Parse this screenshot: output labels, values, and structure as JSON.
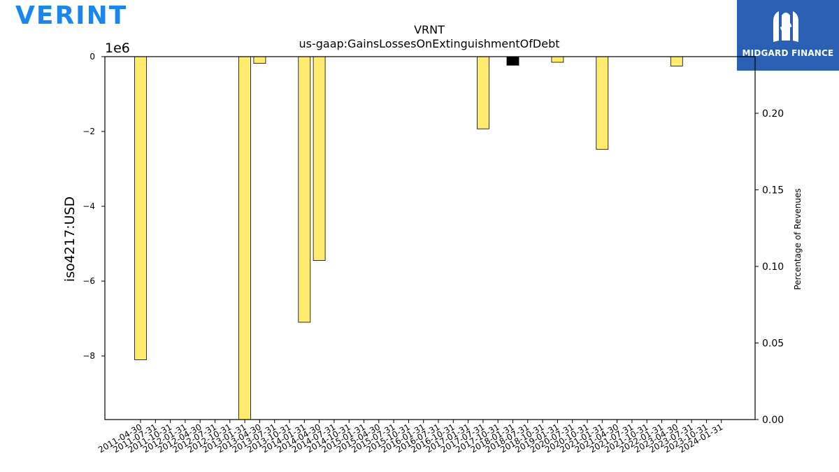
{
  "header": {
    "brand_logo": "VERINT",
    "badge_text": "MIDGARD FINANCE",
    "badge_color": "#2b5fb3",
    "brand_color": "#1a86f0"
  },
  "chart_data": {
    "type": "bar",
    "title": "VRNT",
    "subtitle": "us-gaap:GainsLossesOnExtinguishmentOfDebt",
    "ylabel": "iso4217:USD",
    "y2label": "Percentage of Revenues",
    "offset_label": "1e6",
    "ylim": [
      -9700000,
      0
    ],
    "y2lim": [
      0,
      0.237
    ],
    "yticks": [
      0,
      -2000000,
      -4000000,
      -6000000,
      -8000000
    ],
    "ytick_labels": [
      "0",
      "−2",
      "−4",
      "−6",
      "−8"
    ],
    "y2ticks": [
      0.0,
      0.05,
      0.1,
      0.15,
      0.2
    ],
    "y2tick_labels": [
      "0.00",
      "0.05",
      "0.10",
      "0.15",
      "0.20"
    ],
    "categories": [
      "2011-04-30",
      "2011-07-31",
      "2011-10-31",
      "2012-01-31",
      "2012-04-30",
      "2012-07-31",
      "2012-10-31",
      "2013-01-31",
      "2013-04-30",
      "2013-07-31",
      "2013-10-31",
      "2014-01-31",
      "2014-04-30",
      "2014-07-31",
      "2014-10-31",
      "2015-01-31",
      "2015-04-30",
      "2015-07-31",
      "2015-10-31",
      "2016-01-31",
      "2016-07-31",
      "2016-10-31",
      "2017-01-31",
      "2017-07-31",
      "2017-10-31",
      "2018-01-31",
      "2018-07-31",
      "2018-10-31",
      "2019-01-31",
      "2020-07-31",
      "2020-10-31",
      "2021-01-31",
      "2021-04-30",
      "2021-07-31",
      "2021-10-31",
      "2022-01-31",
      "2023-04-30",
      "2023-07-31",
      "2023-10-31",
      "2024-01-31"
    ],
    "values": [
      -8100000,
      0,
      0,
      0,
      0,
      0,
      0,
      -9700000,
      -180000,
      0,
      0,
      -7100000,
      -5450000,
      0,
      0,
      0,
      0,
      0,
      0,
      0,
      0,
      0,
      0,
      -1930000,
      0,
      -230000,
      0,
      0,
      -150000,
      0,
      0,
      -2480000,
      0,
      0,
      0,
      0,
      -250000,
      0,
      0,
      0
    ],
    "bar_colors": [
      "#ffec6e",
      "#ffec6e",
      "#ffec6e",
      "#ffec6e",
      "#ffec6e",
      "#ffec6e",
      "#ffec6e",
      "#ffec6e",
      "#ffec6e",
      "#ffec6e",
      "#ffec6e",
      "#ffec6e",
      "#ffec6e",
      "#ffec6e",
      "#ffec6e",
      "#ffec6e",
      "#ffec6e",
      "#ffec6e",
      "#ffec6e",
      "#ffec6e",
      "#ffec6e",
      "#ffec6e",
      "#ffec6e",
      "#ffec6e",
      "#ffec6e",
      "#000000",
      "#ffec6e",
      "#ffec6e",
      "#ffec6e",
      "#ffec6e",
      "#ffec6e",
      "#ffec6e",
      "#ffec6e",
      "#ffec6e",
      "#ffec6e",
      "#ffec6e",
      "#ffec6e",
      "#ffec6e",
      "#ffec6e",
      "#ffec6e"
    ],
    "grid": false,
    "legend": "none"
  }
}
